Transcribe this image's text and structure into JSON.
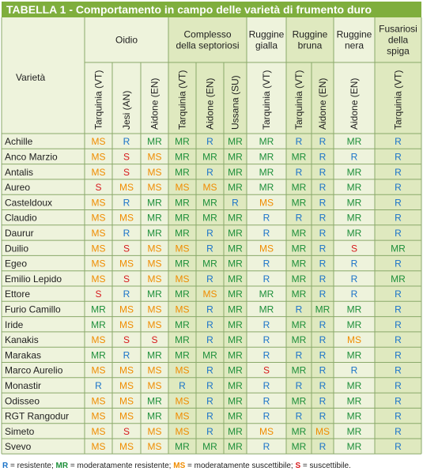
{
  "table_title": "TABELLA 1 - Comportamento in campo delle varietà di frumento duro",
  "row_header": "Varietà",
  "groups": [
    {
      "label": [
        "Oidio"
      ],
      "span": 3
    },
    {
      "label": [
        "Complesso",
        "della septoriosi"
      ],
      "span": 3
    },
    {
      "label": [
        "Ruggine",
        "gialla"
      ],
      "span": 1
    },
    {
      "label": [
        "Ruggine",
        "bruna"
      ],
      "span": 2
    },
    {
      "label": [
        "Ruggine",
        "nera"
      ],
      "span": 1
    },
    {
      "label": [
        "Fusariosi",
        "della",
        "spiga"
      ],
      "span": 1
    }
  ],
  "columns": [
    "Tarquinia (VT)",
    "Jesi (AN)",
    "Aidone (EN)",
    "Tarquinia (VT)",
    "Aidone (EN)",
    "Ussana (SU)",
    "Tarquinia (VT)",
    "Tarquinia (VT)",
    "Aidone (EN)",
    "Aidone (EN)",
    "Tarquinia (VT)"
  ],
  "rows": [
    {
      "name": "Achille",
      "values": [
        "MS",
        "R",
        "MR",
        "MR",
        "R",
        "MR",
        "MR",
        "R",
        "R",
        "MR",
        "R"
      ]
    },
    {
      "name": "Anco Marzio",
      "values": [
        "MS",
        "S",
        "MS",
        "MR",
        "MR",
        "MR",
        "MR",
        "MR",
        "R",
        "R",
        "R"
      ]
    },
    {
      "name": "Antalis",
      "values": [
        "MS",
        "S",
        "MS",
        "MR",
        "R",
        "MR",
        "MR",
        "R",
        "R",
        "MR",
        "R"
      ]
    },
    {
      "name": "Aureo",
      "values": [
        "S",
        "MS",
        "MS",
        "MS",
        "MS",
        "MR",
        "MR",
        "MR",
        "R",
        "MR",
        "R"
      ]
    },
    {
      "name": "Casteldoux",
      "values": [
        "MS",
        "R",
        "MR",
        "MR",
        "MR",
        "R",
        "MS",
        "MR",
        "R",
        "MR",
        "R"
      ]
    },
    {
      "name": "Claudio",
      "values": [
        "MS",
        "MS",
        "MR",
        "MR",
        "MR",
        "MR",
        "R",
        "R",
        "R",
        "MR",
        "R"
      ]
    },
    {
      "name": "Daurur",
      "values": [
        "MS",
        "R",
        "MR",
        "MR",
        "R",
        "MR",
        "R",
        "MR",
        "R",
        "MR",
        "R"
      ]
    },
    {
      "name": "Duilio",
      "values": [
        "MS",
        "S",
        "MS",
        "MS",
        "R",
        "MR",
        "MS",
        "MR",
        "R",
        "S",
        "MR"
      ]
    },
    {
      "name": "Egeo",
      "values": [
        "MS",
        "MS",
        "MS",
        "MR",
        "MR",
        "MR",
        "R",
        "MR",
        "R",
        "R",
        "R"
      ]
    },
    {
      "name": "Emilio Lepido",
      "values": [
        "MS",
        "S",
        "MS",
        "MS",
        "R",
        "MR",
        "R",
        "MR",
        "R",
        "R",
        "MR"
      ]
    },
    {
      "name": "Ettore",
      "values": [
        "S",
        "R",
        "MR",
        "MR",
        "MS",
        "MR",
        "MR",
        "MR",
        "R",
        "R",
        "R"
      ]
    },
    {
      "name": "Furio Camillo",
      "values": [
        "MR",
        "MS",
        "MS",
        "MS",
        "R",
        "MR",
        "MR",
        "R",
        "MR",
        "MR",
        "R"
      ]
    },
    {
      "name": "Iride",
      "values": [
        "MR",
        "MS",
        "MS",
        "MR",
        "R",
        "MR",
        "R",
        "MR",
        "R",
        "MR",
        "R"
      ]
    },
    {
      "name": "Kanakis",
      "values": [
        "MS",
        "S",
        "S",
        "MR",
        "R",
        "MR",
        "R",
        "MR",
        "R",
        "MS",
        "R"
      ]
    },
    {
      "name": "Marakas",
      "values": [
        "MR",
        "R",
        "MR",
        "MR",
        "MR",
        "MR",
        "R",
        "R",
        "R",
        "MR",
        "R"
      ]
    },
    {
      "name": "Marco Aurelio",
      "values": [
        "MS",
        "MS",
        "MS",
        "MS",
        "R",
        "MR",
        "S",
        "MR",
        "R",
        "R",
        "R"
      ]
    },
    {
      "name": "Monastir",
      "values": [
        "R",
        "MS",
        "MS",
        "R",
        "R",
        "MR",
        "R",
        "R",
        "R",
        "MR",
        "R"
      ]
    },
    {
      "name": "Odisseo",
      "values": [
        "MS",
        "MS",
        "MR",
        "MS",
        "R",
        "MR",
        "R",
        "MR",
        "R",
        "MR",
        "R"
      ]
    },
    {
      "name": "RGT Rangodur",
      "values": [
        "MS",
        "MS",
        "MR",
        "MS",
        "R",
        "MR",
        "R",
        "R",
        "R",
        "MR",
        "R"
      ]
    },
    {
      "name": "Simeto",
      "values": [
        "MS",
        "S",
        "MS",
        "MS",
        "R",
        "MR",
        "MS",
        "MR",
        "MS",
        "MR",
        "R"
      ]
    },
    {
      "name": "Svevo",
      "values": [
        "MS",
        "MS",
        "MS",
        "MR",
        "MR",
        "MR",
        "R",
        "MR",
        "R",
        "MR",
        "R"
      ]
    }
  ],
  "colors": {
    "R": "#1a73c9",
    "MR": "#1d8f3a",
    "MS": "#f08c00",
    "S": "#d7191c",
    "title_bg": "#7fae3d"
  },
  "legend": [
    {
      "key": "R",
      "text": " = resistente; "
    },
    {
      "key": "MR",
      "text": " = moderatamente resistente; "
    },
    {
      "key": "MS",
      "text": " = moderatamente suscettibile; "
    },
    {
      "key": "S",
      "text": " = suscettibile."
    }
  ]
}
